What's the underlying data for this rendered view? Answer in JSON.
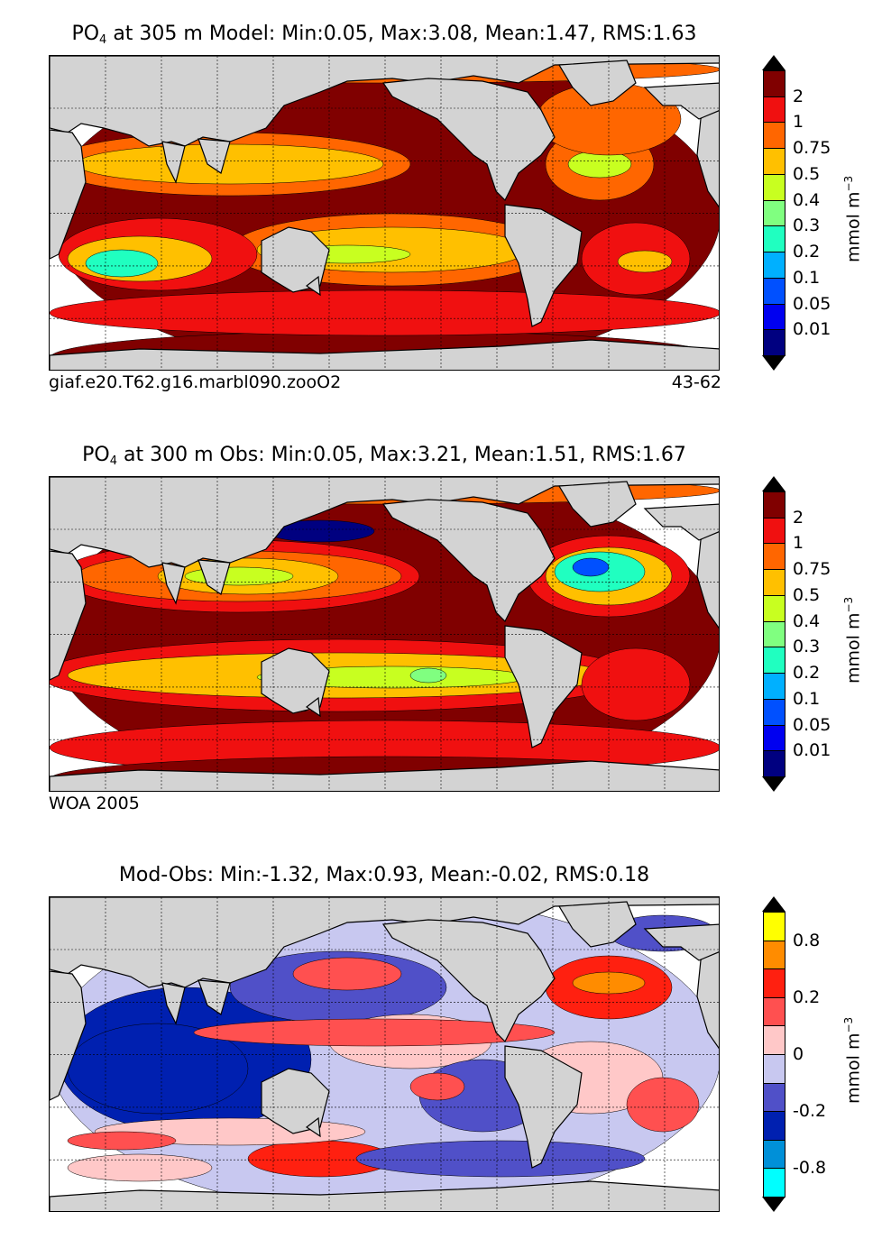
{
  "panels": [
    {
      "title_var": "PO",
      "title_sub": "4",
      "title_rest": " at 305 m Model: Min:0.05, Max:3.08, Mean:1.47, RMS:1.63",
      "caption_left": "giaf.e20.T62.g16.marbl090.zooO2",
      "caption_right": "43-62",
      "colorbar": {
        "colors": [
          "#800000",
          "#f01010",
          "#ff6600",
          "#ffc000",
          "#c8ff20",
          "#80ff80",
          "#20ffc0",
          "#00b0ff",
          "#0050ff",
          "#0000f0",
          "#000080"
        ],
        "labels": [
          "2",
          "1",
          "0.75",
          "0.5",
          "0.4",
          "0.3",
          "0.2",
          "0.1",
          "0.05",
          "0.01"
        ],
        "unit": "mmol m",
        "unit_exp": "−3"
      }
    },
    {
      "title_var": "PO",
      "title_sub": "4",
      "title_rest": " at 300 m Obs: Min:0.05, Max:3.21, Mean:1.51, RMS:1.67",
      "caption_left": "WOA 2005",
      "caption_right": "",
      "colorbar": {
        "colors": [
          "#800000",
          "#f01010",
          "#ff6600",
          "#ffc000",
          "#c8ff20",
          "#80ff80",
          "#20ffc0",
          "#00b0ff",
          "#0050ff",
          "#0000f0",
          "#000080"
        ],
        "labels": [
          "2",
          "1",
          "0.75",
          "0.5",
          "0.4",
          "0.3",
          "0.2",
          "0.1",
          "0.05",
          "0.01"
        ],
        "unit": "mmol m",
        "unit_exp": "−3"
      }
    },
    {
      "title_var": "",
      "title_sub": "",
      "title_rest": "Mod-Obs: Min:-1.32, Max:0.93, Mean:-0.02, RMS:0.18",
      "caption_left": "",
      "caption_right": "",
      "colorbar": {
        "colors": [
          "#ffff00",
          "#ff8c00",
          "#ff2010",
          "#ff5050",
          "#ffc8c8",
          "#c8c8f0",
          "#5050c8",
          "#0020b0",
          "#0090d8",
          "#00ffff"
        ],
        "labels": [
          "0.8",
          "",
          "0.2",
          "",
          "0",
          "",
          "-0.2",
          "",
          "-0.8"
        ],
        "unit": "mmol m",
        "unit_exp": "−3"
      }
    }
  ],
  "land_color": "#d3d3d3"
}
